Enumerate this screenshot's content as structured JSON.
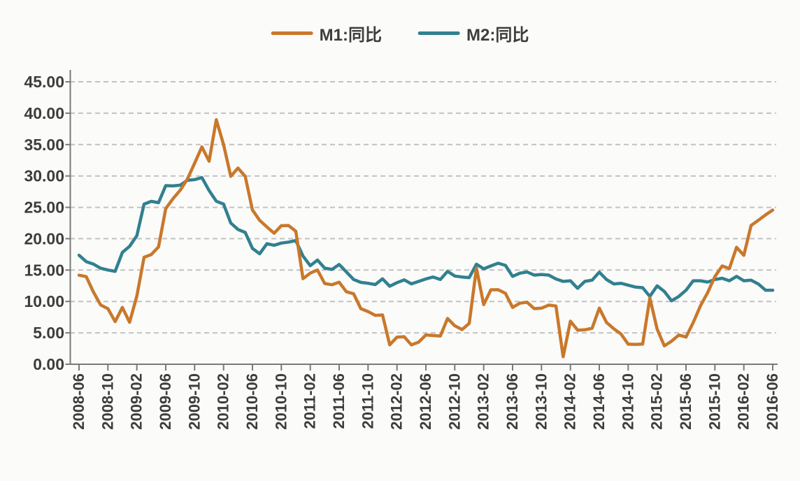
{
  "legend": {
    "items": [
      {
        "id": "m1-yoy",
        "label": "M1:同比",
        "color": "#c9782b"
      },
      {
        "id": "m2-yoy",
        "label": "M2:同比",
        "color": "#31808f"
      }
    ]
  },
  "chart_data": {
    "type": "line",
    "title": "",
    "xlabel": "",
    "ylabel": "",
    "ylim": [
      0,
      45
    ],
    "grid": "horizontal-dashed",
    "legend_position": "top-center",
    "axis_color": "#7a7a7a",
    "grid_color": "#c2c2c2",
    "text_color": "#3d3d3d",
    "background_color": "#fbfbfa",
    "y_ticks": [
      45,
      40,
      35,
      30,
      25,
      20,
      15,
      10,
      5,
      0
    ],
    "y_tick_labels": [
      "45.00",
      "40.00",
      "35.00",
      "30.00",
      "25.00",
      "20.00",
      "15.00",
      "10.00",
      "5.00",
      "0.00"
    ],
    "x_tick_every": 4,
    "x_tick_labels": [
      "2008-06",
      "2008-10",
      "2009-02",
      "2009-06",
      "2009-10",
      "2010-02",
      "2010-06",
      "2010-10",
      "2011-02",
      "2011-06",
      "2011-10",
      "2012-02",
      "2012-06",
      "2012-10",
      "2013-02",
      "2013-06",
      "2013-10",
      "2014-02",
      "2014-06",
      "2014-10",
      "2015-02",
      "2015-06",
      "2015-10",
      "2016-02",
      "2016-06"
    ],
    "x": [
      "2008-06",
      "2008-07",
      "2008-08",
      "2008-09",
      "2008-10",
      "2008-11",
      "2008-12",
      "2009-01",
      "2009-02",
      "2009-03",
      "2009-04",
      "2009-05",
      "2009-06",
      "2009-07",
      "2009-08",
      "2009-09",
      "2009-10",
      "2009-11",
      "2009-12",
      "2010-01",
      "2010-02",
      "2010-03",
      "2010-04",
      "2010-05",
      "2010-06",
      "2010-07",
      "2010-08",
      "2010-09",
      "2010-10",
      "2010-11",
      "2010-12",
      "2011-01",
      "2011-02",
      "2011-03",
      "2011-04",
      "2011-05",
      "2011-06",
      "2011-07",
      "2011-08",
      "2011-09",
      "2011-10",
      "2011-11",
      "2011-12",
      "2012-01",
      "2012-02",
      "2012-03",
      "2012-04",
      "2012-05",
      "2012-06",
      "2012-07",
      "2012-08",
      "2012-09",
      "2012-10",
      "2012-11",
      "2012-12",
      "2013-01",
      "2013-02",
      "2013-03",
      "2013-04",
      "2013-05",
      "2013-06",
      "2013-07",
      "2013-08",
      "2013-09",
      "2013-10",
      "2013-11",
      "2013-12",
      "2014-01",
      "2014-02",
      "2014-03",
      "2014-04",
      "2014-05",
      "2014-06",
      "2014-07",
      "2014-08",
      "2014-09",
      "2014-10",
      "2014-11",
      "2014-12",
      "2015-01",
      "2015-02",
      "2015-03",
      "2015-04",
      "2015-05",
      "2015-06",
      "2015-07",
      "2015-08",
      "2015-09",
      "2015-10",
      "2015-11",
      "2015-12",
      "2016-01",
      "2016-02",
      "2016-03",
      "2016-04",
      "2016-05",
      "2016-06"
    ],
    "series": [
      {
        "id": "m1-yoy",
        "name": "M1:同比",
        "color": "#c9782b",
        "values": [
          14.19,
          13.96,
          11.48,
          9.43,
          8.85,
          6.8,
          9.06,
          6.68,
          10.87,
          17.04,
          17.48,
          18.69,
          24.79,
          26.37,
          27.72,
          29.51,
          32.03,
          34.63,
          32.35,
          38.96,
          34.99,
          29.94,
          31.25,
          29.92,
          24.58,
          22.93,
          21.88,
          20.87,
          22.08,
          22.1,
          21.19,
          13.63,
          14.52,
          15.01,
          12.86,
          12.66,
          13.08,
          11.55,
          11.23,
          8.85,
          8.4,
          7.79,
          7.85,
          3.1,
          4.32,
          4.39,
          3.08,
          3.52,
          4.67,
          4.58,
          4.5,
          7.3,
          6.14,
          5.52,
          6.51,
          15.32,
          9.5,
          11.86,
          11.87,
          11.31,
          9.06,
          9.72,
          9.88,
          8.85,
          8.93,
          9.42,
          9.28,
          1.2,
          6.86,
          5.44,
          5.48,
          5.74,
          8.93,
          6.66,
          5.66,
          4.82,
          3.2,
          3.16,
          3.22,
          10.57,
          5.6,
          2.93,
          3.68,
          4.66,
          4.33,
          6.64,
          9.32,
          11.43,
          13.96,
          15.66,
          15.24,
          18.63,
          17.35,
          22.1,
          22.92,
          23.79,
          24.57
        ]
      },
      {
        "id": "m2-yoy",
        "name": "M2:同比",
        "color": "#31808f",
        "values": [
          17.37,
          16.35,
          15.95,
          15.29,
          15.02,
          14.8,
          17.82,
          18.79,
          20.48,
          25.51,
          25.95,
          25.74,
          28.46,
          28.42,
          28.53,
          29.31,
          29.42,
          29.74,
          27.68,
          25.98,
          25.52,
          22.5,
          21.48,
          21.0,
          18.46,
          17.6,
          19.2,
          18.96,
          19.3,
          19.46,
          19.72,
          17.23,
          15.7,
          16.6,
          15.32,
          15.1,
          15.89,
          14.71,
          13.5,
          13.04,
          12.9,
          12.7,
          13.61,
          12.43,
          13.0,
          13.44,
          12.81,
          13.2,
          13.59,
          13.9,
          13.5,
          14.8,
          14.06,
          13.9,
          13.8,
          15.94,
          15.2,
          15.66,
          16.1,
          15.76,
          14.0,
          14.5,
          14.7,
          14.2,
          14.3,
          14.2,
          13.59,
          13.2,
          13.3,
          12.1,
          13.2,
          13.4,
          14.67,
          13.5,
          12.8,
          12.9,
          12.6,
          12.3,
          12.2,
          10.8,
          12.5,
          11.6,
          10.1,
          10.8,
          11.8,
          13.3,
          13.3,
          13.1,
          13.5,
          13.7,
          13.3,
          14.0,
          13.3,
          13.4,
          12.8,
          11.8,
          11.8
        ]
      }
    ]
  }
}
